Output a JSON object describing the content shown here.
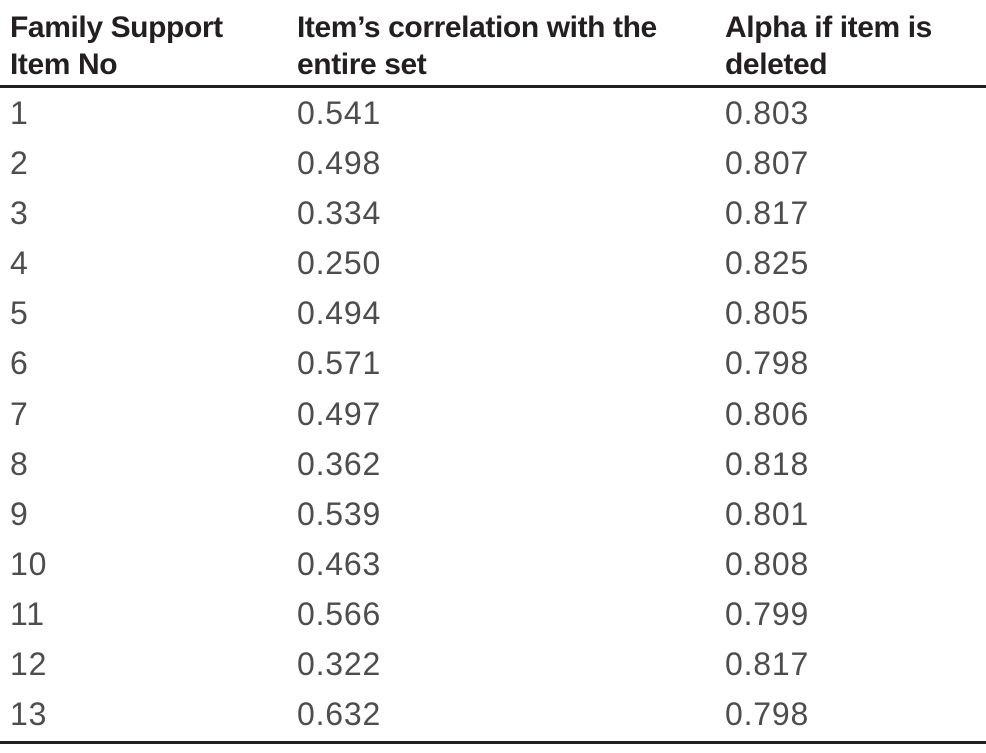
{
  "colors": {
    "background": "#ffffff",
    "rule": "#231f20",
    "header_text": "#231f20",
    "data_text": "#4d4d4d"
  },
  "table": {
    "columns": [
      {
        "id": "item_no",
        "line1": "Family Support",
        "line2": "Item No"
      },
      {
        "id": "correlation",
        "line1": "Item’s correlation with the",
        "line2": "entire set"
      },
      {
        "id": "alpha",
        "line1": "Alpha if item is",
        "line2": "deleted"
      }
    ],
    "rows": [
      {
        "item_no": "1",
        "correlation": "0.541",
        "alpha": "0.803"
      },
      {
        "item_no": "2",
        "correlation": "0.498",
        "alpha": "0.807"
      },
      {
        "item_no": "3",
        "correlation": "0.334",
        "alpha": "0.817"
      },
      {
        "item_no": "4",
        "correlation": "0.250",
        "alpha": "0.825"
      },
      {
        "item_no": "5",
        "correlation": "0.494",
        "alpha": "0.805"
      },
      {
        "item_no": "6",
        "correlation": "0.571",
        "alpha": "0.798"
      },
      {
        "item_no": "7",
        "correlation": "0.497",
        "alpha": "0.806"
      },
      {
        "item_no": "8",
        "correlation": "0.362",
        "alpha": "0.818"
      },
      {
        "item_no": "9",
        "correlation": "0.539",
        "alpha": "0.801"
      },
      {
        "item_no": "10",
        "correlation": "0.463",
        "alpha": "0.808"
      },
      {
        "item_no": "11",
        "correlation": "0.566",
        "alpha": "0.799"
      },
      {
        "item_no": "12",
        "correlation": "0.322",
        "alpha": "0.817"
      },
      {
        "item_no": "13",
        "correlation": "0.632",
        "alpha": "0.798"
      }
    ]
  }
}
